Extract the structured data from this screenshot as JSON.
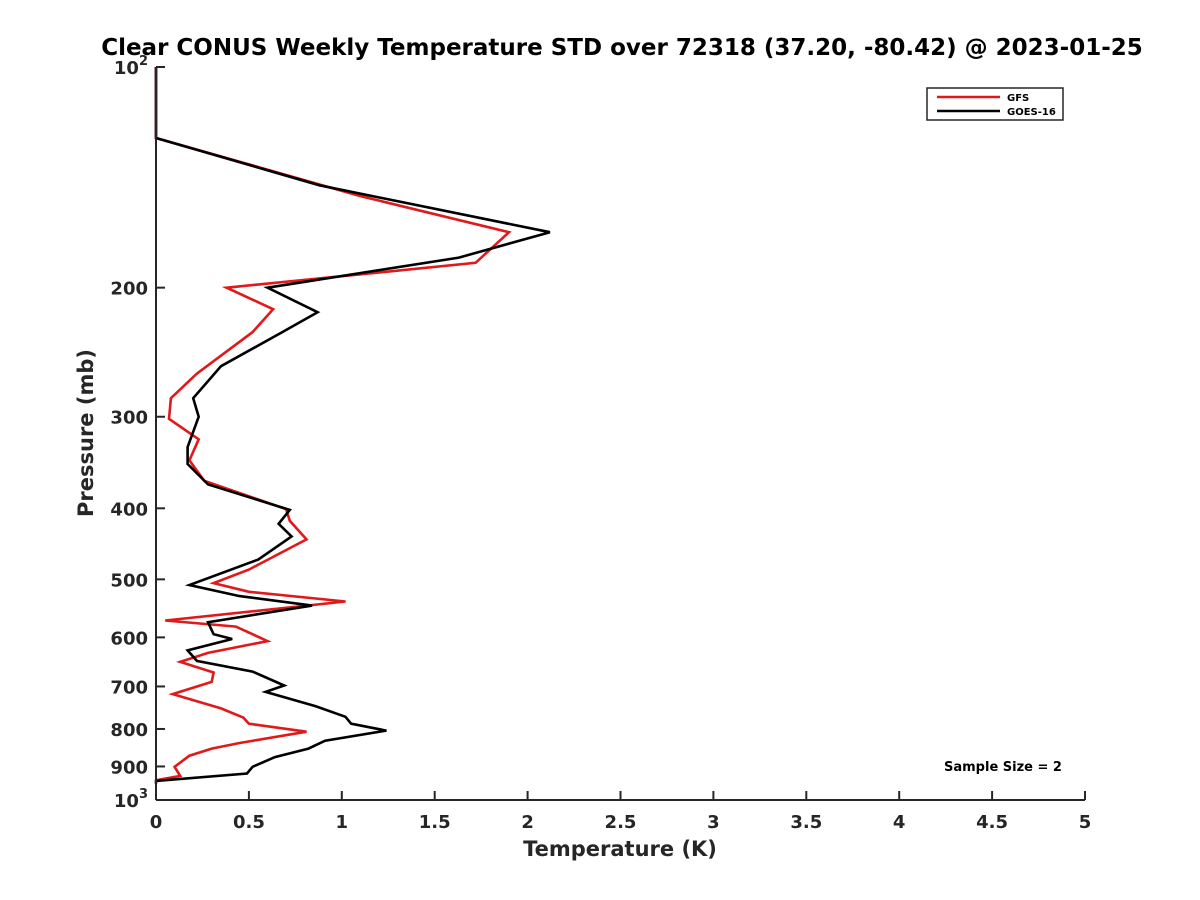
{
  "chart_data": {
    "type": "line",
    "title": "Clear CONUS Weekly Temperature STD over 72318 (37.20, -80.42) @ 2023-01-25",
    "xlabel": "Temperature (K)",
    "ylabel": "Pressure (mb)",
    "xlim": [
      0,
      5
    ],
    "ylim": [
      100,
      1000
    ],
    "y_scale": "log",
    "y_reversed": true,
    "grid": false,
    "legend_position": "top-right",
    "x_ticks": [
      {
        "value": 0,
        "label": "0"
      },
      {
        "value": 0.5,
        "label": "0.5"
      },
      {
        "value": 1,
        "label": "1"
      },
      {
        "value": 1.5,
        "label": "1.5"
      },
      {
        "value": 2,
        "label": "2"
      },
      {
        "value": 2.5,
        "label": "2.5"
      },
      {
        "value": 3,
        "label": "3"
      },
      {
        "value": 3.5,
        "label": "3.5"
      },
      {
        "value": 4,
        "label": "4"
      },
      {
        "value": 4.5,
        "label": "4.5"
      },
      {
        "value": 5,
        "label": "5"
      }
    ],
    "y_ticks": [
      {
        "value": 100,
        "base": "10",
        "exp": "2"
      },
      {
        "value": 200,
        "base": "200",
        "exp": ""
      },
      {
        "value": 300,
        "base": "300",
        "exp": ""
      },
      {
        "value": 400,
        "base": "400",
        "exp": ""
      },
      {
        "value": 500,
        "base": "500",
        "exp": ""
      },
      {
        "value": 600,
        "base": "600",
        "exp": ""
      },
      {
        "value": 700,
        "base": "700",
        "exp": ""
      },
      {
        "value": 800,
        "base": "800",
        "exp": ""
      },
      {
        "value": 900,
        "base": "900",
        "exp": ""
      },
      {
        "value": 1000,
        "base": "10",
        "exp": "3"
      }
    ],
    "series": [
      {
        "name": "GFS",
        "color": "#e0191b",
        "points": [
          [
            0,
            100
          ],
          [
            0,
            125
          ],
          [
            1.1,
            150
          ],
          [
            1.9,
            168
          ],
          [
            1.72,
            185
          ],
          [
            0.38,
            200
          ],
          [
            0.63,
            214
          ],
          [
            0.52,
            230
          ],
          [
            0.22,
            262
          ],
          [
            0.08,
            283
          ],
          [
            0.07,
            302
          ],
          [
            0.23,
            322
          ],
          [
            0.18,
            344
          ],
          [
            0.26,
            367
          ],
          [
            0.7,
            401
          ],
          [
            0.72,
            416
          ],
          [
            0.81,
            441
          ],
          [
            0.5,
            485
          ],
          [
            0.31,
            506
          ],
          [
            0.5,
            520
          ],
          [
            1.02,
            536
          ],
          [
            0.05,
            569
          ],
          [
            0.43,
            580
          ],
          [
            0.6,
            607
          ],
          [
            0.28,
            630
          ],
          [
            0.13,
            648
          ],
          [
            0.31,
            670
          ],
          [
            0.3,
            690
          ],
          [
            0.09,
            717
          ],
          [
            0.35,
            750
          ],
          [
            0.47,
            772
          ],
          [
            0.5,
            787
          ],
          [
            0.81,
            807
          ],
          [
            0.45,
            836
          ],
          [
            0.3,
            851
          ],
          [
            0.18,
            870
          ],
          [
            0.1,
            901
          ],
          [
            0.13,
            927
          ],
          [
            0,
            940
          ]
        ]
      },
      {
        "name": "GOES-16",
        "color": "#000000",
        "points": [
          [
            0,
            100
          ],
          [
            0,
            125
          ],
          [
            0.88,
            145
          ],
          [
            2.12,
            168
          ],
          [
            1.63,
            182
          ],
          [
            0.6,
            200
          ],
          [
            0.87,
            216
          ],
          [
            0.68,
            230
          ],
          [
            0.35,
            256
          ],
          [
            0.2,
            283
          ],
          [
            0.23,
            300
          ],
          [
            0.17,
            330
          ],
          [
            0.17,
            348
          ],
          [
            0.28,
            371
          ],
          [
            0.72,
            402
          ],
          [
            0.66,
            420
          ],
          [
            0.73,
            437
          ],
          [
            0.55,
            470
          ],
          [
            0.18,
            509
          ],
          [
            0.45,
            527
          ],
          [
            0.84,
            543
          ],
          [
            0.28,
            572
          ],
          [
            0.31,
            594
          ],
          [
            0.41,
            603
          ],
          [
            0.17,
            625
          ],
          [
            0.22,
            646
          ],
          [
            0.52,
            668
          ],
          [
            0.69,
            698
          ],
          [
            0.59,
            712
          ],
          [
            0.86,
            745
          ],
          [
            1.02,
            770
          ],
          [
            1.05,
            787
          ],
          [
            1.24,
            804
          ],
          [
            0.91,
            830
          ],
          [
            0.82,
            851
          ],
          [
            0.64,
            874
          ],
          [
            0.52,
            901
          ],
          [
            0.49,
            920
          ],
          [
            0,
            942
          ],
          [
            0,
            950
          ]
        ]
      }
    ],
    "annotations": [
      {
        "text": "Sample Size = 2",
        "position": "bottom-right"
      }
    ]
  }
}
